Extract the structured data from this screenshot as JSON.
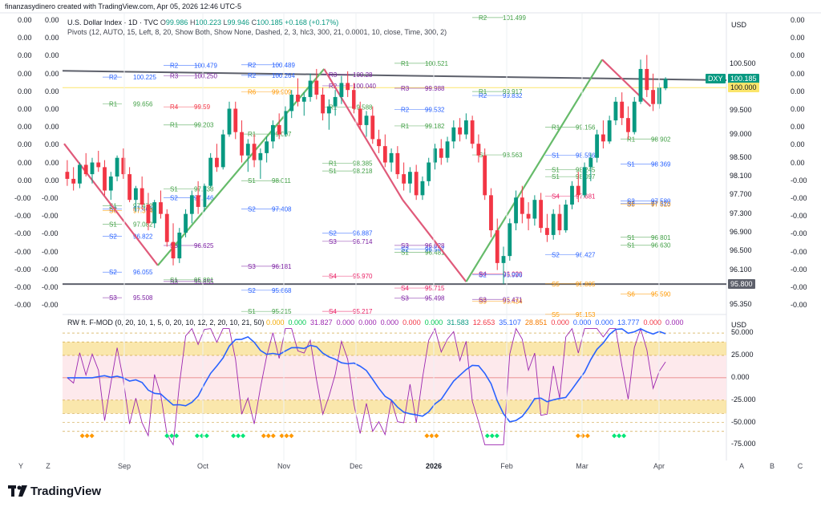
{
  "header": {
    "creator_line": "finanzasydinero created with TradingView.com, Apr 05, 2026 12:46 UTC-5"
  },
  "legend": {
    "symbol": "U.S. Dollar Index · 1D · TVC",
    "open_label": "O",
    "open": "99.986",
    "high_label": "H",
    "high": "100.223",
    "low_label": "L",
    "low": "99.946",
    "close_label": "C",
    "close": "100.185",
    "change": "+0.168 (+0.17%)",
    "pivots": "Pivots (12, AUTO, 15, Left, 8, 20, Show Both, Show None, Dashed, 2, 3, hlc3, 300, 21, 0.0001, 10, close, Time, 300, 2)"
  },
  "price_scale": {
    "currency": "USD",
    "labels": [
      "100.500",
      "100.000",
      "99.500",
      "99.000",
      "98.500",
      "98.100",
      "97.700",
      "97.300",
      "96.900",
      "96.500",
      "96.100",
      "95.800",
      "95.350"
    ],
    "values": [
      100.5,
      100.0,
      99.5,
      99.0,
      98.5,
      98.1,
      97.7,
      97.3,
      96.9,
      96.5,
      96.1,
      95.8,
      95.35
    ],
    "last_label": "100.185",
    "symbol_tag": "DXY",
    "level_tag": "100.000",
    "low_tag": "95.800"
  },
  "zero_columns": {
    "left": [
      "0.00",
      "0.00",
      "0.00",
      "0.00",
      "0.00",
      "0.00",
      "0.00",
      "0.00",
      "0.00",
      "0.00",
      "-0.00",
      "-0.00",
      "-0.00",
      "-0.00",
      "-0.00",
      "-0.00",
      "-0.00"
    ],
    "right": [
      "0.00",
      "0.00",
      "0.00",
      "0.00",
      "0.00",
      "0.00",
      "0.00",
      "0.00",
      "0.00",
      "-0.00",
      "-0.00",
      "-0.00",
      "-0.00",
      "-0.00",
      "-0.00",
      "-0.00",
      "-0.00"
    ]
  },
  "oscillator": {
    "title": "RW ft. F-MOD (0, 20, 10, 1, 5, 0, 20, 10, 12, 2, 20, 10, 21, 50)",
    "values": [
      {
        "v": "0.000",
        "c": "#f2a900"
      },
      {
        "v": "0.000",
        "c": "#00c853"
      },
      {
        "v": "31.827",
        "c": "#9c27b0"
      },
      {
        "v": "0.000",
        "c": "#9c27b0"
      },
      {
        "v": "0.000",
        "c": "#9c27b0"
      },
      {
        "v": "0.000",
        "c": "#9c27b0"
      },
      {
        "v": "0.000",
        "c": "#f23645"
      },
      {
        "v": "0.000",
        "c": "#00c853"
      },
      {
        "v": "31.583",
        "c": "#089981"
      },
      {
        "v": "12.653",
        "c": "#f23645"
      },
      {
        "v": "35.107",
        "c": "#2962ff"
      },
      {
        "v": "28.851",
        "c": "#f57c00"
      },
      {
        "v": "0.000",
        "c": "#f23645"
      },
      {
        "v": "0.000",
        "c": "#2962ff"
      },
      {
        "v": "0.000",
        "c": "#2962ff"
      },
      {
        "v": "13.777",
        "c": "#2962ff"
      },
      {
        "v": "0.000",
        "c": "#f23645"
      },
      {
        "v": "0.000",
        "c": "#9c27b0"
      }
    ],
    "currency": "USD",
    "scale_labels": [
      "50.000",
      "25.000",
      "0.000",
      "-25.000",
      "-50.000",
      "-75.000"
    ],
    "scale_values": [
      50,
      25,
      0,
      -25,
      -50,
      -75
    ]
  },
  "time_axis": {
    "labels": [
      "Y",
      "Z",
      "Sep",
      "Oct",
      "Nov",
      "Dec",
      "2026",
      "Feb",
      "Mar",
      "Apr",
      "A",
      "B",
      "C"
    ]
  },
  "pivot_labels": [
    {
      "t": "R2",
      "v": "100.225",
      "c": "#2962ff"
    },
    {
      "t": "R2",
      "v": "100.479",
      "c": "#2962ff"
    },
    {
      "t": "R2",
      "v": "100.489",
      "c": "#2962ff"
    },
    {
      "t": "R1",
      "v": "99.588",
      "c": "#43a047"
    },
    {
      "t": "R1",
      "v": "99.182",
      "c": "#43a047"
    },
    {
      "t": "S1",
      "v": "98.563",
      "c": "#43a047"
    },
    {
      "t": "S1",
      "v": "98.097",
      "c": "#43a047"
    },
    {
      "t": "S2",
      "v": "97.525",
      "c": "#2962ff"
    },
    {
      "t": "S2",
      "v": "96.822",
      "c": "#2962ff"
    },
    {
      "t": "S3",
      "v": "96.625",
      "c": "#7b1fa2"
    },
    {
      "t": "S3",
      "v": "96.181",
      "c": "#7b1fa2"
    },
    {
      "t": "S4",
      "v": "95.970",
      "c": "#e91e63"
    },
    {
      "t": "S4",
      "v": "95.715",
      "c": "#e91e63"
    },
    {
      "t": "S5",
      "v": "95.434",
      "c": "#ff9800"
    },
    {
      "t": "S5",
      "v": "95.153",
      "c": "#ff9800"
    },
    {
      "t": "S1",
      "v": "96.630",
      "c": "#43a047"
    },
    {
      "t": "S2",
      "v": "96.055",
      "c": "#2962ff"
    },
    {
      "t": "S3",
      "v": "95.855",
      "c": "#7b1fa2"
    },
    {
      "t": "S2",
      "v": "95.668",
      "c": "#2962ff"
    },
    {
      "t": "S2",
      "v": "96.887",
      "c": "#2962ff"
    },
    {
      "t": "S1",
      "v": "96.481",
      "c": "#43a047"
    },
    {
      "t": "R2",
      "v": "99.832",
      "c": "#2962ff"
    },
    {
      "t": "R1",
      "v": "99.156",
      "c": "#43a047"
    },
    {
      "t": "R1",
      "v": "98.902",
      "c": "#43a047"
    },
    {
      "t": "R1",
      "v": "99.656",
      "c": "#43a047"
    },
    {
      "t": "S1",
      "v": "97.838",
      "c": "#43a047"
    },
    {
      "t": "S2",
      "v": "97.408",
      "c": "#2962ff"
    },
    {
      "t": "S3",
      "v": "96.714",
      "c": "#7b1fa2"
    },
    {
      "t": "S3",
      "v": "96.628",
      "c": "#7b1fa2"
    },
    {
      "t": "S4",
      "v": "96.020",
      "c": "#e91e63"
    },
    {
      "t": "S5",
      "v": "95.805",
      "c": "#ff9800"
    },
    {
      "t": "S6",
      "v": "95.590",
      "c": "#ff9800"
    },
    {
      "t": "S3",
      "v": "95.508",
      "c": "#7b1fa2"
    },
    {
      "t": "S1",
      "v": "95.891",
      "c": "#43a047"
    },
    {
      "t": "S1",
      "v": "95.215",
      "c": "#43a047"
    },
    {
      "t": "S4",
      "v": "95.217",
      "c": "#e91e63"
    },
    {
      "t": "S3",
      "v": "95.498",
      "c": "#7b1fa2"
    },
    {
      "t": "S2",
      "v": "95.996",
      "c": "#2962ff"
    },
    {
      "t": "S2",
      "v": "96.427",
      "c": "#2962ff"
    },
    {
      "t": "S1",
      "v": "96.801",
      "c": "#43a047"
    },
    {
      "t": "S1",
      "v": "97.082",
      "c": "#43a047"
    },
    {
      "t": "S2",
      "v": "97.646",
      "c": "#2962ff"
    },
    {
      "t": "S1",
      "v": "98.011",
      "c": "#43a047"
    },
    {
      "t": "R1",
      "v": "98.385",
      "c": "#43a047"
    },
    {
      "t": "R1",
      "v": "100.521",
      "c": "#43a047"
    },
    {
      "t": "R2",
      "v": "101.499",
      "c": "#43a047"
    },
    {
      "t": "S1",
      "v": "98.245",
      "c": "#43a047"
    },
    {
      "t": "S2",
      "v": "97.580",
      "c": "#2962ff"
    },
    {
      "t": "S2",
      "v": "97.406",
      "c": "#2962ff"
    },
    {
      "t": "R4",
      "v": "99.59",
      "c": "#f23645"
    },
    {
      "t": "R6",
      "v": "99.909",
      "c": "#ff9800"
    },
    {
      "t": "R3",
      "v": "100.28",
      "c": "#7b1fa2"
    },
    {
      "t": "S2",
      "v": "96.547",
      "c": "#2962ff"
    },
    {
      "t": "S3",
      "v": "95.471",
      "c": "#7b1fa2"
    },
    {
      "t": "S4",
      "v": "97.681",
      "c": "#e91e63"
    },
    {
      "t": "S5",
      "v": "97.510",
      "c": "#ff9800"
    },
    {
      "t": "S6",
      "v": "97.374",
      "c": "#ff9800"
    },
    {
      "t": "R3",
      "v": "100.250",
      "c": "#7b1fa2"
    },
    {
      "t": "R2",
      "v": "100.264",
      "c": "#2962ff"
    },
    {
      "t": "R2",
      "v": "100.040",
      "c": "#7b1fa2"
    },
    {
      "t": "R3",
      "v": "99.988",
      "c": "#7b1fa2"
    },
    {
      "t": "R1",
      "v": "99.917",
      "c": "#43a047"
    },
    {
      "t": "S1",
      "v": "98.556",
      "c": "#2962ff"
    },
    {
      "t": "S1",
      "v": "98.369",
      "c": "#2962ff"
    },
    {
      "t": "S1",
      "v": "97.472",
      "c": "#43a047"
    },
    {
      "t": "R1",
      "v": "99.203",
      "c": "#43a047"
    },
    {
      "t": "R1",
      "v": "99.007",
      "c": "#43a047"
    },
    {
      "t": "S1",
      "v": "98.218",
      "c": "#43a047"
    },
    {
      "t": "R2",
      "v": "99.532",
      "c": "#2962ff"
    }
  ],
  "chart_data": {
    "type": "candlestick",
    "symbol": "DXY",
    "interval": "1D",
    "ylim": [
      95.15,
      101.6
    ],
    "x_categories": [
      "Sep",
      "Oct",
      "Nov",
      "Dec",
      "2026",
      "Feb",
      "Mar",
      "Apr"
    ],
    "last_close": 100.185,
    "candles": [
      [
        98.2,
        98.45,
        97.9,
        98.05
      ],
      [
        98.05,
        98.3,
        97.8,
        97.95
      ],
      [
        97.95,
        98.4,
        97.85,
        98.35
      ],
      [
        98.35,
        98.6,
        98.1,
        98.15
      ],
      [
        98.15,
        98.5,
        97.95,
        98.4
      ],
      [
        98.4,
        98.65,
        98.2,
        98.3
      ],
      [
        98.3,
        98.45,
        97.7,
        97.8
      ],
      [
        97.8,
        98.2,
        97.6,
        98.1
      ],
      [
        98.1,
        98.55,
        98.0,
        98.5
      ],
      [
        98.5,
        98.7,
        98.05,
        98.15
      ],
      [
        98.15,
        98.3,
        97.55,
        97.6
      ],
      [
        97.6,
        97.9,
        97.35,
        97.85
      ],
      [
        97.85,
        98.1,
        97.4,
        97.5
      ],
      [
        97.5,
        97.75,
        96.95,
        97.1
      ],
      [
        97.1,
        97.6,
        97.0,
        97.55
      ],
      [
        97.55,
        97.8,
        97.2,
        97.3
      ],
      [
        97.3,
        97.4,
        96.6,
        96.7
      ],
      [
        96.7,
        97.1,
        96.2,
        96.35
      ],
      [
        96.35,
        97.0,
        96.25,
        96.9
      ],
      [
        96.9,
        97.4,
        96.8,
        97.3
      ],
      [
        97.3,
        97.8,
        97.1,
        97.7
      ],
      [
        97.7,
        98.0,
        97.3,
        97.45
      ],
      [
        97.45,
        97.95,
        97.35,
        97.9
      ],
      [
        97.9,
        98.6,
        97.85,
        98.5
      ],
      [
        98.5,
        98.8,
        98.2,
        98.3
      ],
      [
        98.3,
        99.1,
        98.25,
        99.0
      ],
      [
        99.0,
        99.7,
        98.95,
        99.55
      ],
      [
        99.55,
        99.7,
        98.9,
        99.05
      ],
      [
        99.05,
        99.3,
        98.4,
        98.55
      ],
      [
        98.55,
        98.9,
        98.2,
        98.8
      ],
      [
        98.8,
        99.0,
        98.3,
        98.45
      ],
      [
        98.45,
        98.7,
        98.05,
        98.6
      ],
      [
        98.6,
        98.95,
        98.4,
        98.85
      ],
      [
        98.85,
        99.3,
        98.7,
        99.2
      ],
      [
        99.2,
        99.45,
        98.9,
        99.0
      ],
      [
        99.0,
        99.6,
        98.95,
        99.5
      ],
      [
        99.5,
        99.95,
        99.35,
        99.85
      ],
      [
        99.85,
        100.2,
        99.6,
        99.7
      ],
      [
        99.7,
        99.9,
        99.4,
        99.8
      ],
      [
        99.8,
        100.3,
        99.7,
        100.15
      ],
      [
        100.15,
        100.4,
        99.75,
        99.85
      ],
      [
        99.85,
        100.0,
        99.3,
        99.45
      ],
      [
        99.45,
        99.75,
        99.1,
        99.6
      ],
      [
        99.6,
        99.95,
        99.4,
        99.8
      ],
      [
        99.8,
        100.25,
        99.65,
        100.1
      ],
      [
        100.1,
        100.35,
        99.8,
        99.95
      ],
      [
        99.95,
        100.1,
        99.45,
        99.55
      ],
      [
        99.55,
        99.7,
        99.1,
        99.2
      ],
      [
        99.2,
        99.5,
        98.95,
        99.4
      ],
      [
        99.4,
        99.6,
        98.8,
        98.9
      ],
      [
        98.9,
        99.1,
        98.6,
        98.75
      ],
      [
        98.75,
        99.0,
        98.3,
        98.4
      ],
      [
        98.4,
        98.7,
        98.2,
        98.6
      ],
      [
        98.6,
        98.75,
        98.05,
        98.15
      ],
      [
        98.15,
        98.4,
        97.8,
        97.95
      ],
      [
        97.95,
        98.3,
        97.75,
        98.2
      ],
      [
        98.2,
        98.35,
        97.6,
        97.7
      ],
      [
        97.7,
        98.1,
        97.6,
        98.0
      ],
      [
        98.0,
        98.5,
        97.9,
        98.4
      ],
      [
        98.4,
        98.8,
        98.25,
        98.7
      ],
      [
        98.7,
        98.9,
        98.35,
        98.5
      ],
      [
        98.5,
        98.95,
        98.4,
        98.85
      ],
      [
        98.85,
        99.3,
        98.7,
        99.15
      ],
      [
        99.15,
        99.35,
        98.85,
        99.0
      ],
      [
        99.0,
        99.45,
        98.9,
        99.3
      ],
      [
        99.3,
        99.4,
        98.7,
        98.8
      ],
      [
        98.8,
        99.0,
        98.4,
        98.55
      ],
      [
        98.55,
        98.7,
        97.6,
        97.7
      ],
      [
        97.7,
        97.85,
        96.8,
        96.95
      ],
      [
        96.95,
        97.2,
        96.1,
        96.25
      ],
      [
        96.25,
        96.6,
        95.8,
        96.4
      ],
      [
        96.4,
        97.2,
        96.3,
        97.1
      ],
      [
        97.1,
        97.8,
        96.95,
        97.65
      ],
      [
        97.65,
        97.9,
        97.1,
        97.3
      ],
      [
        97.3,
        97.55,
        96.95,
        97.2
      ],
      [
        97.2,
        97.7,
        97.05,
        97.6
      ],
      [
        97.6,
        97.75,
        96.9,
        97.0
      ],
      [
        97.0,
        97.3,
        96.7,
        96.85
      ],
      [
        96.85,
        97.4,
        96.75,
        97.3
      ],
      [
        97.3,
        97.5,
        96.85,
        96.95
      ],
      [
        96.95,
        97.6,
        96.9,
        97.5
      ],
      [
        97.5,
        98.0,
        97.4,
        97.9
      ],
      [
        97.9,
        98.2,
        97.55,
        97.7
      ],
      [
        97.7,
        98.4,
        97.65,
        98.3
      ],
      [
        98.3,
        98.6,
        98.0,
        98.5
      ],
      [
        98.5,
        99.1,
        98.4,
        99.0
      ],
      [
        99.0,
        99.3,
        98.7,
        98.85
      ],
      [
        98.85,
        99.4,
        98.8,
        99.3
      ],
      [
        99.3,
        99.8,
        99.2,
        99.7
      ],
      [
        99.7,
        99.9,
        99.2,
        99.35
      ],
      [
        99.35,
        99.6,
        98.9,
        99.05
      ],
      [
        99.05,
        99.8,
        99.0,
        99.7
      ],
      [
        99.7,
        100.6,
        99.65,
        100.4
      ],
      [
        100.4,
        100.7,
        99.8,
        99.95
      ],
      [
        99.95,
        100.3,
        99.5,
        99.65
      ],
      [
        99.65,
        100.1,
        99.55,
        100.0
      ],
      [
        99.986,
        100.223,
        99.946,
        100.185
      ]
    ],
    "zigzag_x": [
      0.0,
      0.155,
      0.43,
      0.56,
      0.665,
      0.89,
      0.97
    ],
    "zigzag_y": [
      98.8,
      96.2,
      100.4,
      97.6,
      95.85,
      100.6,
      99.6
    ]
  }
}
